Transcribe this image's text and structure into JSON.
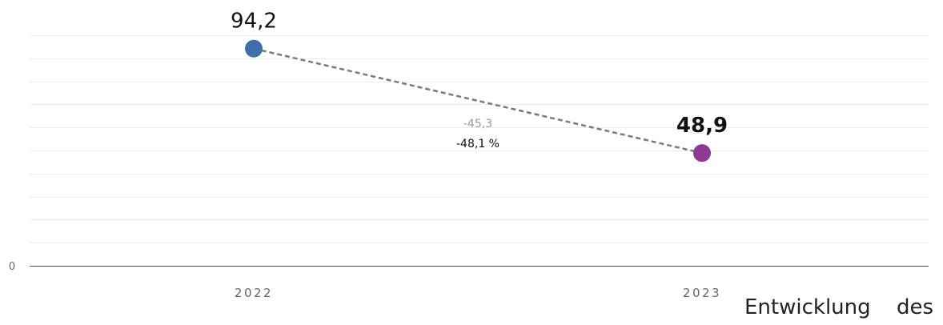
{
  "chart_data": {
    "type": "line",
    "categories": [
      "2022",
      "2023"
    ],
    "values": [
      94.2,
      48.9
    ],
    "value_labels": [
      "94,2",
      "48,9"
    ],
    "point_colors": [
      "#3f6faa",
      "#8e3a92"
    ],
    "y_tick_labels": [
      {
        "value": 0,
        "label": "0"
      }
    ],
    "ylim": [
      0,
      100
    ],
    "grid": true,
    "change": {
      "absolute": "-45,3",
      "percent": "-48,1 %"
    }
  },
  "caption": "Entwicklung des",
  "colors": {
    "gridline": "#ebebeb",
    "axis": "#555555",
    "connector": "#7a7a7a",
    "tick_text": "#666666",
    "change_abs_text": "#999999",
    "change_pct_text": "#111111"
  }
}
